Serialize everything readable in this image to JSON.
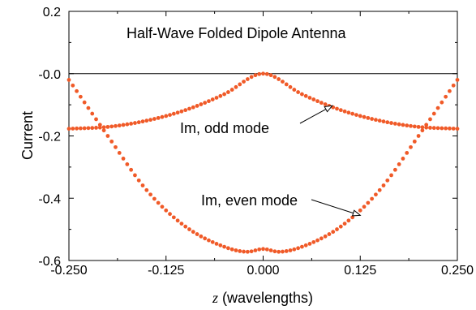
{
  "chart_data": {
    "type": "scatter",
    "title": "Half-Wave Folded Dipole Antenna",
    "xlabel_var": "z",
    "xlabel_rest": " (wavelengths)",
    "ylabel": "Current",
    "xlim": [
      -0.25,
      0.25
    ],
    "ylim": [
      -0.6,
      0.2
    ],
    "xticks": [
      -0.25,
      -0.125,
      0.0,
      0.125,
      0.25
    ],
    "xtick_labels": [
      "-0.250",
      "-0.125",
      "0.000",
      "0.125",
      "0.250"
    ],
    "yticks": [
      0.2,
      0.0,
      -0.2,
      -0.4,
      -0.6
    ],
    "ytick_labels": [
      "0.2",
      "-0.0",
      "-0.2",
      "-0.4",
      "-0.6"
    ],
    "reference_line_y": 0.0,
    "marker_color": "#f05a28",
    "series": [
      {
        "x": [
          -0.25,
          -0.2,
          -0.15,
          -0.1,
          -0.05,
          0.0,
          0.05,
          0.1,
          0.15,
          0.2,
          0.25
        ],
        "y": [
          -0.177,
          -0.171,
          -0.151,
          -0.117,
          -0.066,
          0.0,
          -0.066,
          -0.117,
          -0.151,
          -0.171,
          -0.177
        ]
      },
      {
        "x": [
          -0.25,
          -0.2,
          -0.15,
          -0.1,
          -0.05,
          -0.02,
          0.0,
          0.02,
          0.05,
          0.1,
          0.15,
          0.2,
          0.25
        ],
        "y": [
          -0.02,
          -0.2,
          -0.374,
          -0.491,
          -0.556,
          -0.572,
          -0.563,
          -0.572,
          -0.556,
          -0.491,
          -0.374,
          -0.2,
          -0.02
        ]
      }
    ],
    "annotations": [
      {
        "text": "Im, odd mode",
        "x": 0.089,
        "y": -0.103
      },
      {
        "text": "Im, even mode",
        "x": 0.125,
        "y": -0.455
      }
    ]
  }
}
